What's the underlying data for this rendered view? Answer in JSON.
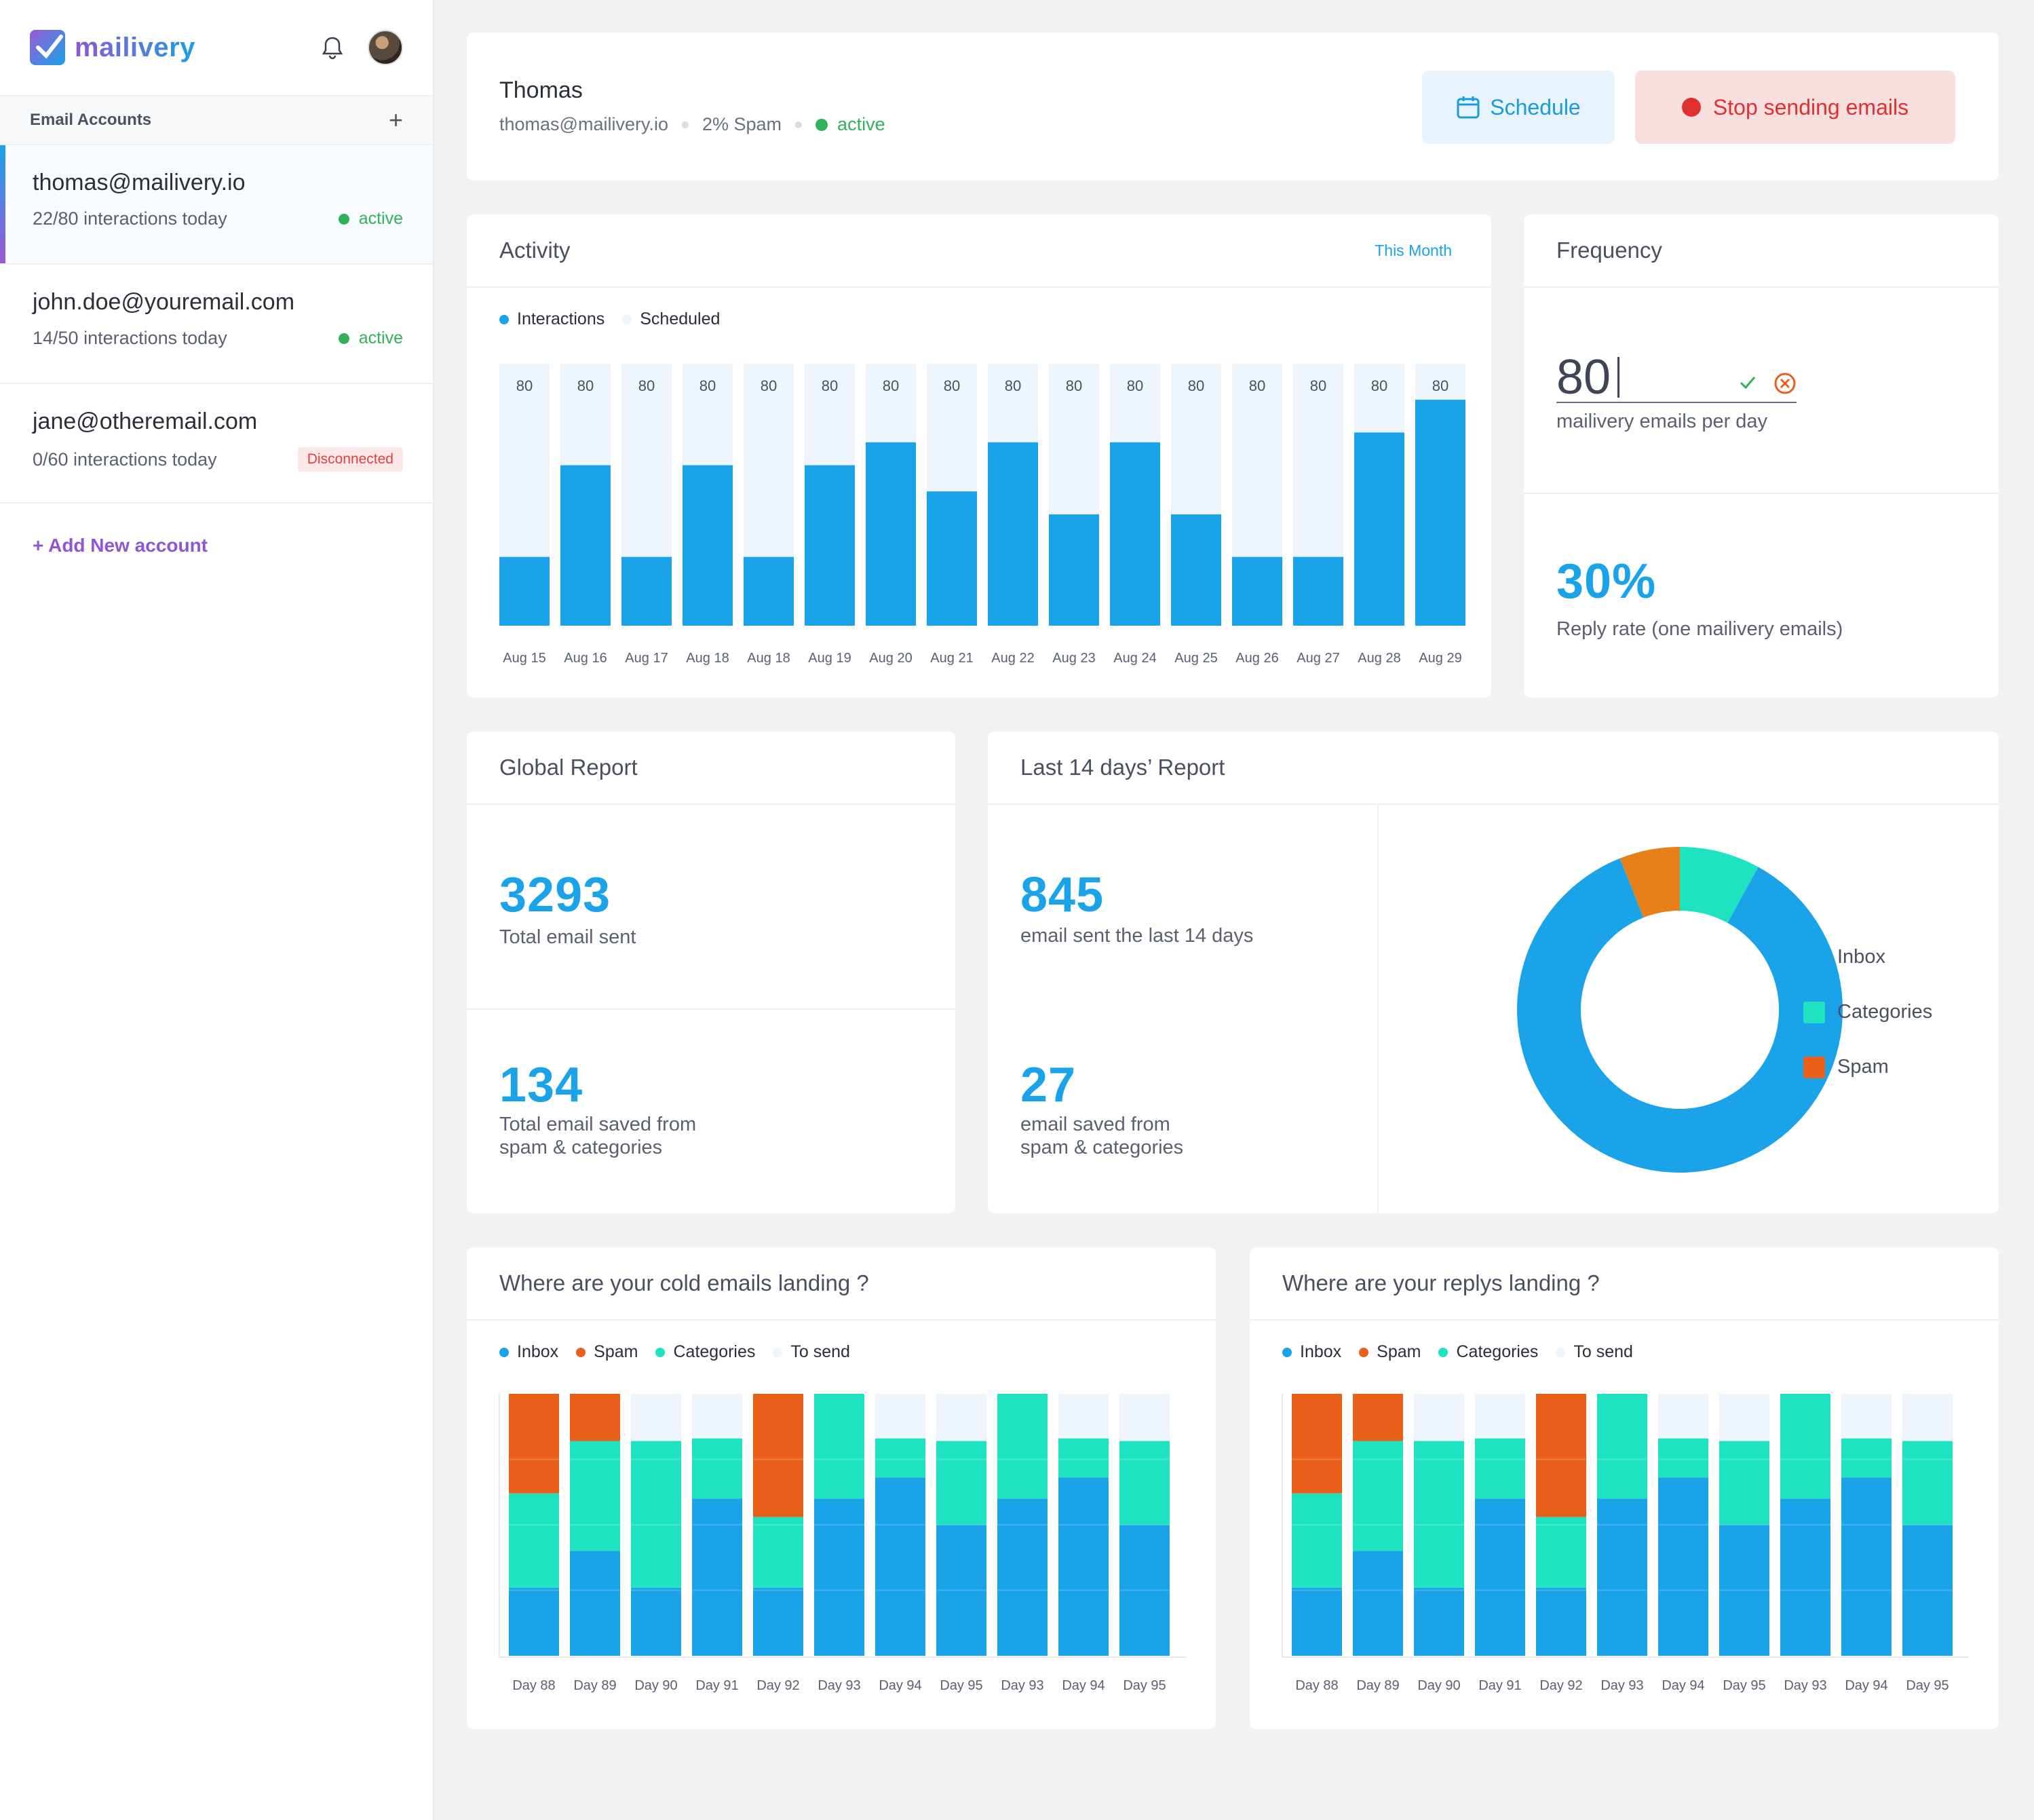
{
  "brand": {
    "name": "mailivery"
  },
  "sidebar": {
    "header": "Email Accounts",
    "add_icon": "+",
    "accounts": [
      {
        "email": "thomas@mailivery.io",
        "usage": "22/80 interactions today",
        "status": "active"
      },
      {
        "email": "john.doe@youremail.com",
        "usage": "14/50 interactions today",
        "status": "active"
      },
      {
        "email": "jane@otheremail.com",
        "usage": "0/60 interactions today",
        "status": "Disconnected"
      }
    ],
    "add_account": "+ Add New account"
  },
  "profile": {
    "name": "Thomas",
    "email": "thomas@mailivery.io",
    "spam": "2% Spam",
    "status": "active",
    "schedule_label": "Schedule",
    "stop_label": "Stop sending emails"
  },
  "activity": {
    "title": "Activity",
    "period": "This Month",
    "legend": [
      "Interactions",
      "Scheduled"
    ]
  },
  "frequency": {
    "title": "Frequency",
    "value": "80",
    "value_label": "mailivery emails per day",
    "reply_rate": "30%",
    "reply_label": "Reply rate (one mailivery emails)"
  },
  "global_report": {
    "title": "Global Report",
    "total_sent": "3293",
    "total_sent_label": "Total email sent",
    "saved": "134",
    "saved_label_1": "Total email saved from",
    "saved_label_2": "spam & categories"
  },
  "last14": {
    "title": "Last 14 days’ Report",
    "sent": "845",
    "sent_label": "email sent the last 14 days",
    "saved": "27",
    "saved_label_1": "email saved from",
    "saved_label_2": "spam & categories",
    "legend": [
      "Inbox",
      "Categories",
      "Spam"
    ]
  },
  "cold": {
    "title": "Where are your cold emails landing ?"
  },
  "replys": {
    "title": "Where are your replys landing ?"
  },
  "landing_legend": [
    "Inbox",
    "Spam",
    "Categories",
    "To send"
  ],
  "colors": {
    "inbox": "#1aa3e8",
    "categories": "#1de3c0",
    "spam": "#e8601a",
    "scheduled": "#eef5fc",
    "donut_spam": "#e8801a",
    "active": "#31b15a"
  },
  "chart_data": [
    {
      "type": "bar",
      "title": "Activity",
      "categories": [
        "Aug 15",
        "Aug 16",
        "Aug 17",
        "Aug 18",
        "Aug 18",
        "Aug 19",
        "Aug 20",
        "Aug 21",
        "Aug 22",
        "Aug 23",
        "Aug 24",
        "Aug 25",
        "Aug 26",
        "Aug 27",
        "Aug 28",
        "Aug 29"
      ],
      "series": [
        {
          "name": "Interactions",
          "values": [
            21,
            49,
            21,
            49,
            21,
            49,
            56,
            41,
            56,
            34,
            56,
            34,
            21,
            21,
            59,
            69
          ]
        },
        {
          "name": "Scheduled",
          "values": [
            80,
            80,
            80,
            80,
            80,
            80,
            80,
            80,
            80,
            80,
            80,
            80,
            80,
            80,
            80,
            80
          ]
        }
      ],
      "data_labels": [
        "80",
        "80",
        "80",
        "80",
        "80",
        "80",
        "80",
        "80",
        "80",
        "80",
        "80",
        "80",
        "80",
        "80",
        "80",
        "80"
      ],
      "ylim": [
        0,
        80
      ]
    },
    {
      "type": "pie",
      "title": "Last 14 days’ Report",
      "categories": [
        "Inbox",
        "Categories",
        "Spam"
      ],
      "values": [
        86,
        8,
        6
      ]
    },
    {
      "type": "bar",
      "stacked": true,
      "title": "Where are your cold emails landing ?",
      "categories": [
        "Day 88",
        "Day 89",
        "Day 90",
        "Day 91",
        "Day 92",
        "Day 93",
        "Day 94",
        "Day 95",
        "Day 93",
        "Day 94",
        "Day 95"
      ],
      "series": [
        {
          "name": "Inbox",
          "values": [
            26,
            40,
            26,
            60,
            26,
            60,
            68,
            50,
            60,
            68,
            50
          ]
        },
        {
          "name": "Categories",
          "values": [
            36,
            42,
            56,
            23,
            27,
            40,
            15,
            32,
            40,
            15,
            32
          ]
        },
        {
          "name": "Spam",
          "values": [
            38,
            18,
            0,
            0,
            47,
            0,
            0,
            0,
            0,
            0,
            0
          ]
        },
        {
          "name": "To send",
          "values": [
            0,
            0,
            18,
            17,
            0,
            0,
            17,
            18,
            0,
            17,
            18
          ]
        }
      ],
      "ylim": [
        0,
        100
      ]
    },
    {
      "type": "bar",
      "stacked": true,
      "title": "Where are your replys landing ?",
      "categories": [
        "Day 88",
        "Day 89",
        "Day 90",
        "Day 91",
        "Day 92",
        "Day 93",
        "Day 94",
        "Day 95",
        "Day 93",
        "Day 94",
        "Day 95"
      ],
      "series": [
        {
          "name": "Inbox",
          "values": [
            26,
            40,
            26,
            60,
            26,
            60,
            68,
            50,
            60,
            68,
            50
          ]
        },
        {
          "name": "Categories",
          "values": [
            36,
            42,
            56,
            23,
            27,
            40,
            15,
            32,
            40,
            15,
            32
          ]
        },
        {
          "name": "Spam",
          "values": [
            38,
            18,
            0,
            0,
            47,
            0,
            0,
            0,
            0,
            0,
            0
          ]
        },
        {
          "name": "To send",
          "values": [
            0,
            0,
            18,
            17,
            0,
            0,
            17,
            18,
            0,
            17,
            18
          ]
        }
      ],
      "ylim": [
        0,
        100
      ]
    }
  ]
}
